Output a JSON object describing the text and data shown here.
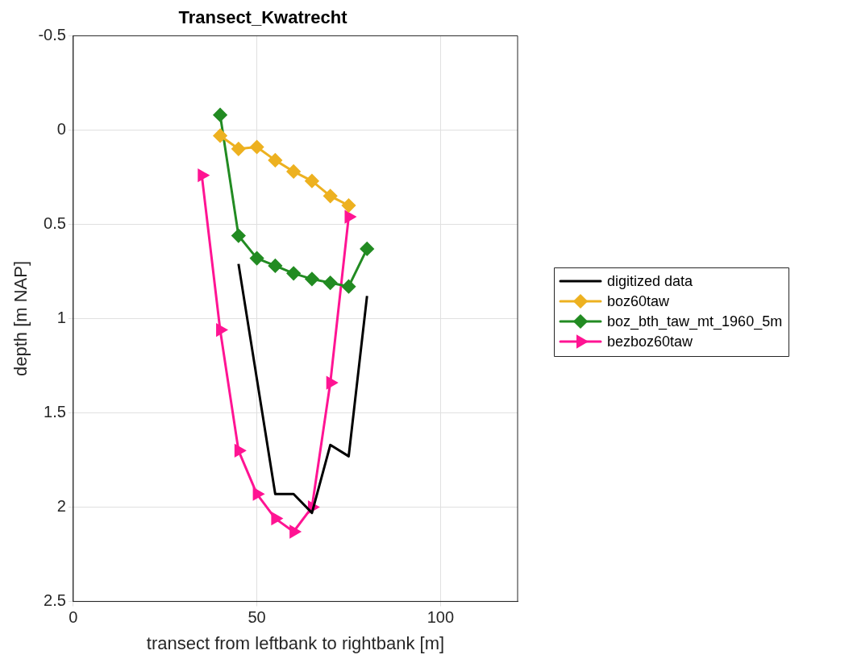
{
  "chart_data": {
    "type": "line",
    "title": "Transect_Kwatrecht",
    "xlabel": "transect from leftbank to rightbank [m]",
    "ylabel": "depth [m NAP]",
    "xlim": [
      0,
      121
    ],
    "xticks": [
      0,
      50,
      100
    ],
    "ylim": [
      2.5,
      -0.5
    ],
    "yticks": [
      -0.5,
      0,
      0.5,
      1,
      1.5,
      2,
      2.5
    ],
    "grid": true,
    "legend": "right",
    "series": [
      {
        "name": "digitized data",
        "color": "#000000",
        "marker": "none",
        "x": [
          45,
          55,
          60,
          65,
          70,
          75,
          80
        ],
        "values": [
          0.71,
          1.93,
          1.93,
          2.03,
          1.67,
          1.73,
          0.88
        ]
      },
      {
        "name": "boz60taw",
        "color": "#edb120",
        "marker": "diamond",
        "x": [
          40,
          45,
          50,
          55,
          60,
          65,
          70,
          75
        ],
        "values": [
          0.03,
          0.1,
          0.09,
          0.16,
          0.22,
          0.27,
          0.35,
          0.4
        ]
      },
      {
        "name": "boz_bth_taw_mt_1960_5m",
        "color": "#228b22",
        "marker": "diamond",
        "x": [
          40,
          45,
          50,
          55,
          60,
          65,
          70,
          75,
          80
        ],
        "values": [
          -0.08,
          0.56,
          0.68,
          0.72,
          0.76,
          0.79,
          0.81,
          0.83,
          0.63
        ]
      },
      {
        "name": "bezboz60taw",
        "color": "#ff1493",
        "marker": "triangle",
        "x": [
          35,
          40,
          45,
          50,
          55,
          60,
          65,
          70,
          75
        ],
        "values": [
          0.24,
          1.06,
          1.7,
          1.93,
          2.06,
          2.13,
          2.0,
          1.34,
          0.46
        ]
      }
    ]
  }
}
